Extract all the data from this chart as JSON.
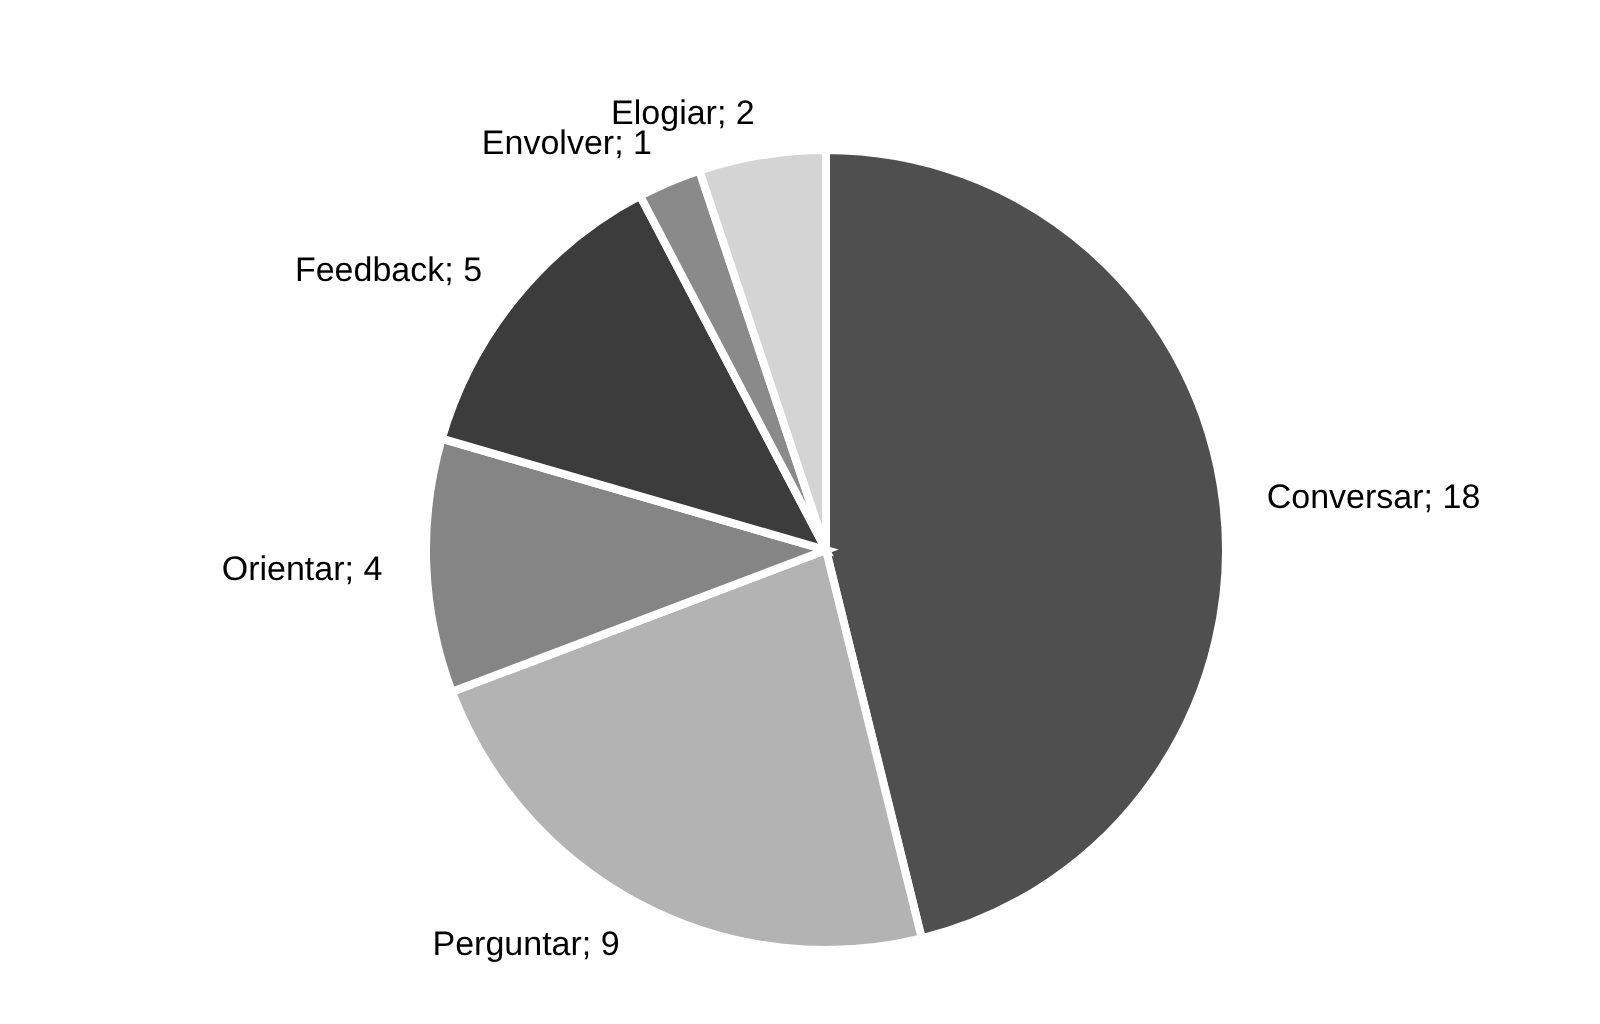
{
  "chart_data": {
    "type": "pie",
    "categories": [
      "Conversar",
      "Perguntar",
      "Orientar",
      "Feedback",
      "Envolver",
      "Elogiar"
    ],
    "values": [
      18,
      9,
      4,
      5,
      1,
      2
    ],
    "colors": [
      "#4f4f4f",
      "#b3b3b3",
      "#858585",
      "#3c3c3c",
      "#8a8a8a",
      "#d4d4d4"
    ],
    "value_labels": [
      "; 18",
      "; 9",
      "; 4",
      "; 5",
      "; 1",
      "; 2"
    ]
  }
}
